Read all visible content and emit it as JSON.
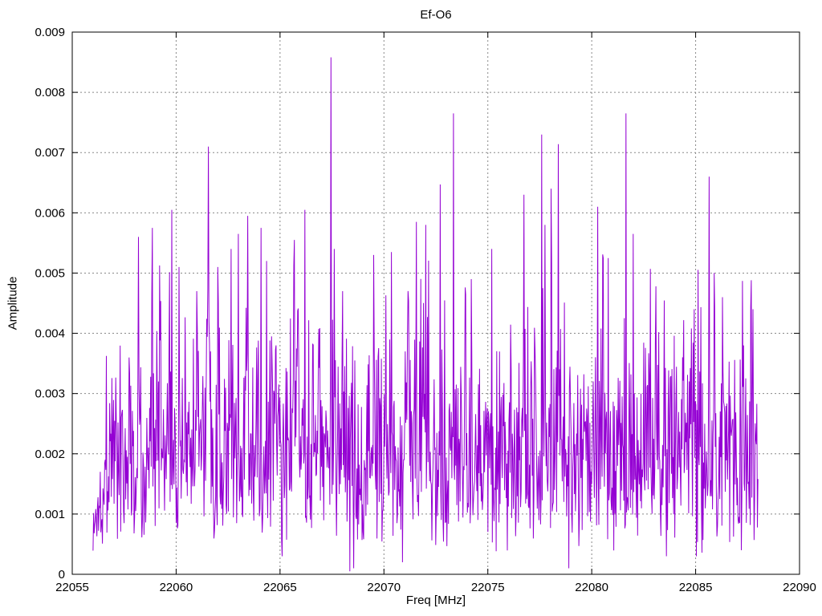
{
  "page": {
    "background": "#ffffff"
  },
  "chart_data": {
    "type": "line",
    "title": "Ef-O6",
    "xlabel": "Freq [MHz]",
    "ylabel": "Amplitude",
    "xlim": [
      22055,
      22090
    ],
    "ylim": [
      0,
      0.009
    ],
    "xticks": [
      22055,
      22060,
      22065,
      22070,
      22075,
      22080,
      22085,
      22090
    ],
    "yticks": [
      0,
      0.001,
      0.002,
      0.003,
      0.004,
      0.005,
      0.006,
      0.007,
      0.008,
      0.009
    ],
    "grid": true,
    "legend_position": "none",
    "line_color": "#9400d3",
    "grid_color": "#888888",
    "axis_color": "#000000",
    "data_x_start": 22056.0,
    "data_x_end": 22088.0,
    "noise": {
      "seed": 1337,
      "points": 1200,
      "rayleigh_sigma": 0.00155,
      "floor": 0.00032,
      "min": 5e-05,
      "cap": 0.0054,
      "spike_prob": 0.012,
      "spike_extra": 0.0012,
      "ramp_mhz": 0.8,
      "ramp_min_scale": 0.3
    },
    "major_peaks": [
      [
        22058.2,
        0.0056
      ],
      [
        22058.85,
        0.00575
      ],
      [
        22059.8,
        0.00605
      ],
      [
        22060.15,
        0.0051
      ],
      [
        22061.0,
        0.0047
      ],
      [
        22061.55,
        0.0071
      ],
      [
        22062.0,
        0.0051
      ],
      [
        22062.65,
        0.0054
      ],
      [
        22063.0,
        0.00565
      ],
      [
        22063.45,
        0.00595
      ],
      [
        22064.1,
        0.00575
      ],
      [
        22064.35,
        0.0052
      ],
      [
        22065.7,
        0.00555
      ],
      [
        22066.2,
        0.00605
      ],
      [
        22067.45,
        0.00858
      ],
      [
        22067.6,
        0.0054
      ],
      [
        22069.5,
        0.0053
      ],
      [
        22070.35,
        0.00535
      ],
      [
        22071.55,
        0.00585
      ],
      [
        22072.0,
        0.0058
      ],
      [
        22072.7,
        0.00647
      ],
      [
        22073.35,
        0.00765
      ],
      [
        22074.2,
        0.0049
      ],
      [
        22075.2,
        0.0054
      ],
      [
        22076.75,
        0.0063
      ],
      [
        22077.6,
        0.0073
      ],
      [
        22077.75,
        0.0058
      ],
      [
        22078.05,
        0.0064
      ],
      [
        22078.4,
        0.00714
      ],
      [
        22080.3,
        0.0061
      ],
      [
        22080.55,
        0.00525
      ],
      [
        22080.8,
        0.00525
      ],
      [
        22081.65,
        0.00765
      ],
      [
        22082.0,
        0.00565
      ],
      [
        22083.1,
        0.00478
      ],
      [
        22084.8,
        0.00408
      ],
      [
        22085.65,
        0.0066
      ],
      [
        22085.9,
        0.005
      ],
      [
        22086.3,
        0.0046
      ],
      [
        22087.3,
        0.0038
      ],
      [
        22087.75,
        0.0044
      ]
    ],
    "deep_nulls": [
      [
        22065.1,
        0.0003
      ],
      [
        22068.35,
        5e-05
      ],
      [
        22068.55,
        0.0001
      ],
      [
        22070.9,
        0.0002
      ],
      [
        22078.9,
        0.0001
      ],
      [
        22083.6,
        0.0003
      ],
      [
        22085.05,
        0.0003
      ],
      [
        22087.2,
        0.0004
      ]
    ]
  }
}
